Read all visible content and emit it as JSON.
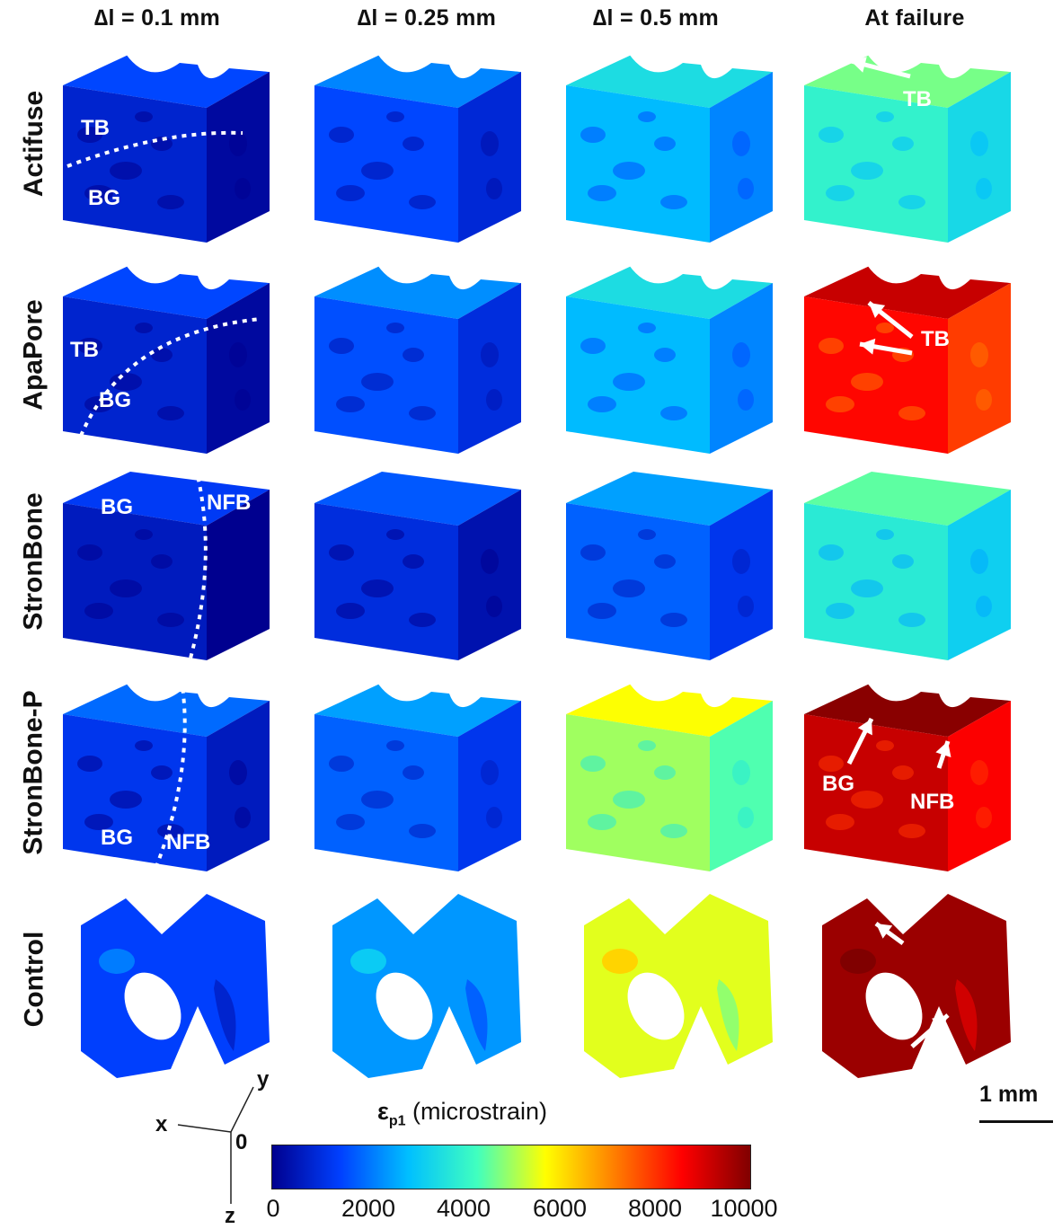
{
  "columns": [
    "∆l = 0.1 mm",
    "∆l = 0.25 mm",
    "∆l = 0.5 mm",
    "At failure"
  ],
  "rows": [
    "Actifuse",
    "ApaPore",
    "StronBone",
    "StronBone-P",
    "Control"
  ],
  "annotations": {
    "tb": "TB",
    "bg": "BG",
    "nfb": "NFB"
  },
  "colorbar": {
    "symbol": "ε",
    "subscript": "p1",
    "unit": "(microstrain)",
    "min": 0,
    "max": 10000,
    "ticks": [
      "0",
      "2000",
      "4000",
      "6000",
      "8000",
      "10000"
    ],
    "colors": [
      "#00008f",
      "#0040ff",
      "#00c0ff",
      "#40ffbf",
      "#ffff00",
      "#ff8000",
      "#ff0000",
      "#800000"
    ]
  },
  "scale_bar": "1 mm",
  "axes": {
    "x": "x",
    "y": "y",
    "z": "z",
    "origin": "0"
  },
  "strain_levels": [
    [
      0.08,
      0.15,
      0.28,
      0.4
    ],
    [
      0.08,
      0.16,
      0.28,
      0.85
    ],
    [
      0.06,
      0.1,
      0.18,
      0.38
    ],
    [
      0.12,
      0.18,
      0.5,
      0.92
    ],
    [
      0.14,
      0.24,
      0.55,
      0.97
    ]
  ]
}
